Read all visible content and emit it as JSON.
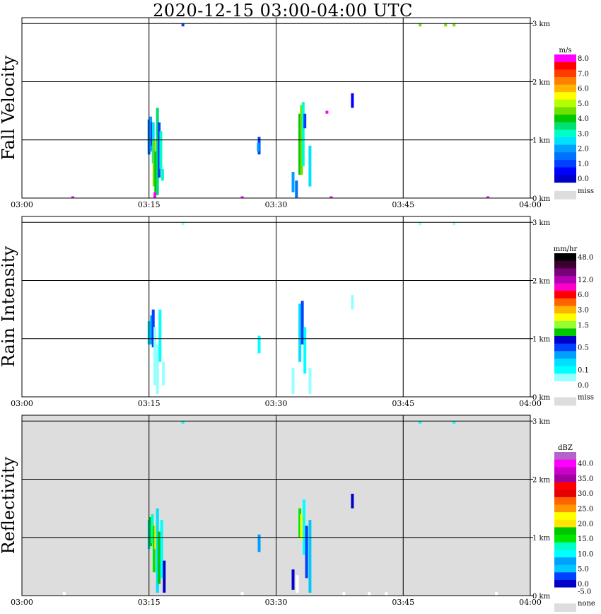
{
  "title": "2020-12-15   03:00-04:00 UTC",
  "chart_data": [
    {
      "type": "heatmap",
      "ylabel": "Fall Velocity",
      "x_ticks": [
        "03:00",
        "03:15",
        "03:30",
        "03:45",
        "04:00"
      ],
      "y_ticks": [
        "0 km",
        "1 km",
        "2 km",
        "3 km"
      ],
      "ylim": [
        0,
        3.1
      ],
      "background": "white",
      "legend": {
        "unit": "m/s",
        "entries": [
          {
            "label": "8.0",
            "color": "#ff00ff"
          },
          {
            "label": "",
            "color": "#ff0000"
          },
          {
            "label": "7.0",
            "color": "#ff3b00"
          },
          {
            "label": "",
            "color": "#ff8000"
          },
          {
            "label": "6.0",
            "color": "#ffb400"
          },
          {
            "label": "",
            "color": "#ffff00"
          },
          {
            "label": "5.0",
            "color": "#b4ff00"
          },
          {
            "label": "",
            "color": "#70e000"
          },
          {
            "label": "4.0",
            "color": "#00c800"
          },
          {
            "label": "",
            "color": "#00e070"
          },
          {
            "label": "3.0",
            "color": "#00ffc8"
          },
          {
            "label": "",
            "color": "#00e0ff"
          },
          {
            "label": "2.0",
            "color": "#00a0ff"
          },
          {
            "label": "",
            "color": "#0070ff"
          },
          {
            "label": "1.0",
            "color": "#0040ff"
          },
          {
            "label": "",
            "color": "#0000ff"
          },
          {
            "label": "0.0",
            "color": "#0000c8"
          }
        ],
        "miss": {
          "label": "miss",
          "color": "#dddddd"
        }
      },
      "echoes": [
        {
          "t": 15.0,
          "h0": 0.75,
          "h1": 1.35,
          "color": "#0070ff"
        },
        {
          "t": 15.2,
          "h0": 0.8,
          "h1": 1.4,
          "color": "#00a0ff"
        },
        {
          "t": 15.4,
          "h0": 0.9,
          "h1": 1.3,
          "color": "#0000c8"
        },
        {
          "t": 15.5,
          "h0": 0.6,
          "h1": 1.3,
          "color": "#00e0ff"
        },
        {
          "t": 15.6,
          "h0": 0.2,
          "h1": 1.0,
          "color": "#70e000"
        },
        {
          "t": 15.8,
          "h0": 0.1,
          "h1": 0.8,
          "color": "#00c800"
        },
        {
          "t": 16.0,
          "h0": 0.05,
          "h1": 1.55,
          "color": "#00e070"
        },
        {
          "t": 16.2,
          "h0": 0.35,
          "h1": 1.3,
          "color": "#0040ff"
        },
        {
          "t": 16.4,
          "h0": 0.5,
          "h1": 1.15,
          "color": "#00ffc8"
        },
        {
          "t": 16.6,
          "h0": 0.3,
          "h1": 0.5,
          "color": "#00ffc8"
        },
        {
          "t": 15.7,
          "h0": 0.0,
          "h1": 0.1,
          "color": "#ff00ff"
        },
        {
          "t": 28.0,
          "h0": 0.75,
          "h1": 1.05,
          "color": "#0040ff"
        },
        {
          "t": 27.9,
          "h0": 0.8,
          "h1": 0.95,
          "color": "#00a0ff"
        },
        {
          "t": 32.0,
          "h0": 0.1,
          "h1": 0.45,
          "color": "#00a0ff"
        },
        {
          "t": 32.4,
          "h0": 0.0,
          "h1": 0.3,
          "color": "#0070ff"
        },
        {
          "t": 32.8,
          "h0": 0.4,
          "h1": 1.45,
          "color": "#00c800"
        },
        {
          "t": 33.0,
          "h0": 0.4,
          "h1": 1.6,
          "color": "#70e000"
        },
        {
          "t": 33.2,
          "h0": 0.55,
          "h1": 1.65,
          "color": "#00ffc8"
        },
        {
          "t": 33.4,
          "h0": 1.2,
          "h1": 1.45,
          "color": "#0040ff"
        },
        {
          "t": 34.0,
          "h0": 0.2,
          "h1": 0.9,
          "color": "#00e0ff"
        },
        {
          "t": 36.0,
          "h0": 1.45,
          "h1": 1.5,
          "color": "#ff00ff"
        },
        {
          "t": 39.0,
          "h0": 1.55,
          "h1": 1.8,
          "color": "#0000ff"
        },
        {
          "t": 19.0,
          "h0": 2.95,
          "h1": 3.0,
          "color": "#0040ff"
        },
        {
          "t": 47.0,
          "h0": 2.95,
          "h1": 3.0,
          "color": "#70e000"
        },
        {
          "t": 50.0,
          "h0": 2.95,
          "h1": 3.0,
          "color": "#70e000"
        },
        {
          "t": 51.0,
          "h0": 2.95,
          "h1": 3.0,
          "color": "#70e000"
        },
        {
          "t": 6.0,
          "h0": 0.0,
          "h1": 0.03,
          "color": "#ff00ff"
        },
        {
          "t": 26.0,
          "h0": 0.0,
          "h1": 0.03,
          "color": "#ff00ff"
        },
        {
          "t": 36.5,
          "h0": 0.0,
          "h1": 0.03,
          "color": "#ff00ff"
        },
        {
          "t": 55.0,
          "h0": 0.0,
          "h1": 0.03,
          "color": "#ff00ff"
        }
      ]
    },
    {
      "type": "heatmap",
      "ylabel": "Rain Intensity",
      "x_ticks": [
        "03:00",
        "03:15",
        "03:30",
        "03:45",
        "04:00"
      ],
      "y_ticks": [
        "0 km",
        "1 km",
        "2 km",
        "3 km"
      ],
      "ylim": [
        0,
        3.1
      ],
      "background": "white",
      "legend": {
        "unit": "mm/hr",
        "entries": [
          {
            "label": "48.0",
            "color": "#000000"
          },
          {
            "label": "",
            "color": "#3c0030"
          },
          {
            "label": "",
            "color": "#780078"
          },
          {
            "label": "12.0",
            "color": "#b400b4"
          },
          {
            "label": "",
            "color": "#ff00c8"
          },
          {
            "label": "6.0",
            "color": "#ff0000"
          },
          {
            "label": "",
            "color": "#ff6400"
          },
          {
            "label": "3.0",
            "color": "#ffb400"
          },
          {
            "label": "",
            "color": "#ffff00"
          },
          {
            "label": "1.5",
            "color": "#96ff32"
          },
          {
            "label": "",
            "color": "#00c800"
          },
          {
            "label": "",
            "color": "#0000c8"
          },
          {
            "label": "0.5",
            "color": "#0040ff"
          },
          {
            "label": "",
            "color": "#00a0ff"
          },
          {
            "label": "",
            "color": "#00e0ff"
          },
          {
            "label": "0.1",
            "color": "#00ffff"
          },
          {
            "label": "",
            "color": "#96ffff"
          },
          {
            "label": "0.0",
            "color": "#ffffff"
          }
        ],
        "miss": {
          "label": "miss",
          "color": "#dddddd"
        }
      },
      "echoes": [
        {
          "t": 15.0,
          "h0": 0.9,
          "h1": 1.3,
          "color": "#00e0ff"
        },
        {
          "t": 15.3,
          "h0": 0.9,
          "h1": 1.4,
          "color": "#00a0ff"
        },
        {
          "t": 15.5,
          "h0": 0.85,
          "h1": 1.5,
          "color": "#0040ff"
        },
        {
          "t": 15.7,
          "h0": 0.2,
          "h1": 1.2,
          "color": "#96ffff"
        },
        {
          "t": 16.0,
          "h0": 0.05,
          "h1": 0.9,
          "color": "#96ffff"
        },
        {
          "t": 16.3,
          "h0": 0.6,
          "h1": 1.5,
          "color": "#00ffff"
        },
        {
          "t": 16.7,
          "h0": 0.2,
          "h1": 0.6,
          "color": "#96ffff"
        },
        {
          "t": 28.0,
          "h0": 0.75,
          "h1": 1.05,
          "color": "#00ffff"
        },
        {
          "t": 32.0,
          "h0": 0.05,
          "h1": 0.5,
          "color": "#96ffff"
        },
        {
          "t": 32.8,
          "h0": 0.6,
          "h1": 1.6,
          "color": "#00e0ff"
        },
        {
          "t": 33.1,
          "h0": 0.9,
          "h1": 1.65,
          "color": "#0040ff"
        },
        {
          "t": 33.4,
          "h0": 0.4,
          "h1": 1.2,
          "color": "#00ffff"
        },
        {
          "t": 34.0,
          "h0": 0.05,
          "h1": 0.5,
          "color": "#96ffff"
        },
        {
          "t": 39.0,
          "h0": 1.5,
          "h1": 1.75,
          "color": "#96ffff"
        },
        {
          "t": 19.0,
          "h0": 2.95,
          "h1": 3.0,
          "color": "#96ffff"
        },
        {
          "t": 47.0,
          "h0": 2.95,
          "h1": 3.0,
          "color": "#96ffff"
        },
        {
          "t": 51.0,
          "h0": 2.95,
          "h1": 3.0,
          "color": "#96ffff"
        }
      ]
    },
    {
      "type": "heatmap",
      "ylabel": "Reflectivity",
      "x_ticks": [
        "03:00",
        "03:15",
        "03:30",
        "03:45",
        "04:00"
      ],
      "y_ticks": [
        "0 km",
        "1 km",
        "2 km",
        "3 km"
      ],
      "ylim": [
        0,
        3.1
      ],
      "background": "#dddddd",
      "legend": {
        "unit": "dBZ",
        "entries": [
          {
            "label": "",
            "color": "#b464c8"
          },
          {
            "label": "40.0",
            "color": "#ff00ff"
          },
          {
            "label": "",
            "color": "#c800c8"
          },
          {
            "label": "35.0",
            "color": "#a000a0"
          },
          {
            "label": "",
            "color": "#ff0000"
          },
          {
            "label": "30.0",
            "color": "#e60000"
          },
          {
            "label": "",
            "color": "#ff6400"
          },
          {
            "label": "25.0",
            "color": "#ff9600"
          },
          {
            "label": "",
            "color": "#ffff00"
          },
          {
            "label": "20.0",
            "color": "#ffe600"
          },
          {
            "label": "",
            "color": "#00c800"
          },
          {
            "label": "15.0",
            "color": "#00e600"
          },
          {
            "label": "",
            "color": "#00ffc8"
          },
          {
            "label": "10.0",
            "color": "#00ffff"
          },
          {
            "label": "",
            "color": "#00a0ff"
          },
          {
            "label": "5.0",
            "color": "#00c8ff"
          },
          {
            "label": "",
            "color": "#0040ff"
          },
          {
            "label": "0.0",
            "color": "#0000c8"
          },
          {
            "label": "-5.0",
            "color": "#ffffff"
          }
        ],
        "miss": {
          "label": "none",
          "color": "#dddddd"
        }
      },
      "echoes": [
        {
          "t": 15.0,
          "h0": 0.8,
          "h1": 1.3,
          "color": "#00e0ff"
        },
        {
          "t": 15.2,
          "h0": 0.85,
          "h1": 1.35,
          "color": "#00c800"
        },
        {
          "t": 15.4,
          "h0": 0.9,
          "h1": 1.4,
          "color": "#00ffc8"
        },
        {
          "t": 15.6,
          "h0": 0.4,
          "h1": 1.2,
          "color": "#00e600"
        },
        {
          "t": 15.8,
          "h0": 0.8,
          "h1": 1.2,
          "color": "#ffe600"
        },
        {
          "t": 16.0,
          "h0": 0.05,
          "h1": 1.5,
          "color": "#00e0ff"
        },
        {
          "t": 16.2,
          "h0": 0.2,
          "h1": 1.1,
          "color": "#00c800"
        },
        {
          "t": 16.5,
          "h0": 0.3,
          "h1": 1.3,
          "color": "#00ffff"
        },
        {
          "t": 16.8,
          "h0": 0.05,
          "h1": 0.6,
          "color": "#0000c8"
        },
        {
          "t": 28.0,
          "h0": 0.75,
          "h1": 1.05,
          "color": "#00a0ff"
        },
        {
          "t": 32.0,
          "h0": 0.1,
          "h1": 0.45,
          "color": "#0000c8"
        },
        {
          "t": 32.5,
          "h0": 0.05,
          "h1": 0.35,
          "color": "#ffffff"
        },
        {
          "t": 32.8,
          "h0": 1.0,
          "h1": 1.5,
          "color": "#00e600"
        },
        {
          "t": 33.0,
          "h0": 0.95,
          "h1": 1.4,
          "color": "#ffff00"
        },
        {
          "t": 33.3,
          "h0": 0.7,
          "h1": 1.65,
          "color": "#00ffff"
        },
        {
          "t": 33.6,
          "h0": 0.3,
          "h1": 1.2,
          "color": "#0040ff"
        },
        {
          "t": 34.0,
          "h0": 0.05,
          "h1": 1.3,
          "color": "#00c8ff"
        },
        {
          "t": 39.0,
          "h0": 1.5,
          "h1": 1.75,
          "color": "#0000c8"
        },
        {
          "t": 19.0,
          "h0": 2.95,
          "h1": 3.0,
          "color": "#00ffff"
        },
        {
          "t": 47.0,
          "h0": 2.95,
          "h1": 3.0,
          "color": "#00ffff"
        },
        {
          "t": 51.0,
          "h0": 2.95,
          "h1": 3.0,
          "color": "#00ffff"
        },
        {
          "t": 5.0,
          "h0": 0.0,
          "h1": 0.06,
          "color": "#ffffff"
        },
        {
          "t": 26.0,
          "h0": 0.0,
          "h1": 0.06,
          "color": "#ffffff"
        },
        {
          "t": 38.0,
          "h0": 0.0,
          "h1": 0.06,
          "color": "#ffffff"
        },
        {
          "t": 41.0,
          "h0": 0.0,
          "h1": 0.06,
          "color": "#ffffff"
        },
        {
          "t": 43.0,
          "h0": 0.0,
          "h1": 0.06,
          "color": "#ffffff"
        },
        {
          "t": 56.0,
          "h0": 0.0,
          "h1": 0.06,
          "color": "#ffffff"
        }
      ]
    }
  ]
}
